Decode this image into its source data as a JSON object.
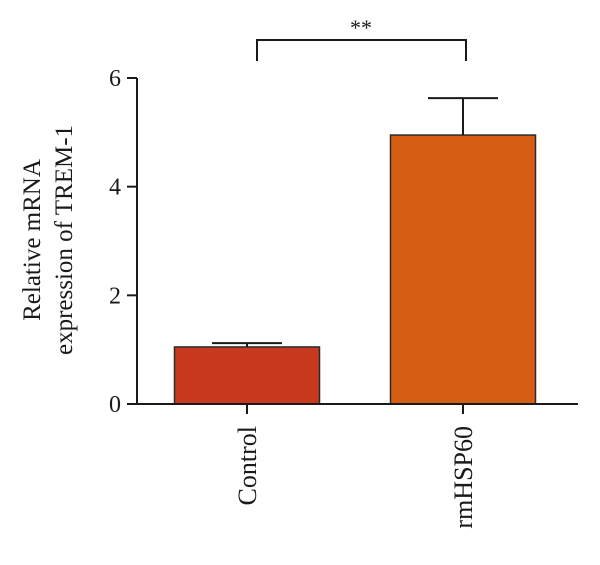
{
  "chart_data": {
    "type": "bar",
    "title": "",
    "xlabel": "",
    "ylabel_lines": [
      "Relative mRNA",
      "expression of TREM-1"
    ],
    "categories": [
      "Control",
      "rmHSP60"
    ],
    "series": [
      {
        "values": [
          1.05,
          4.95
        ],
        "errors": [
          0.07,
          0.68
        ]
      }
    ],
    "bar_colors": [
      "#c9391f",
      "#d65d14"
    ],
    "ylim": [
      0,
      6
    ],
    "yticks": [
      0,
      2,
      4,
      6
    ],
    "significance": {
      "label": "**",
      "between": [
        "Control",
        "rmHSP60"
      ]
    },
    "grid": false,
    "legend": "none"
  }
}
